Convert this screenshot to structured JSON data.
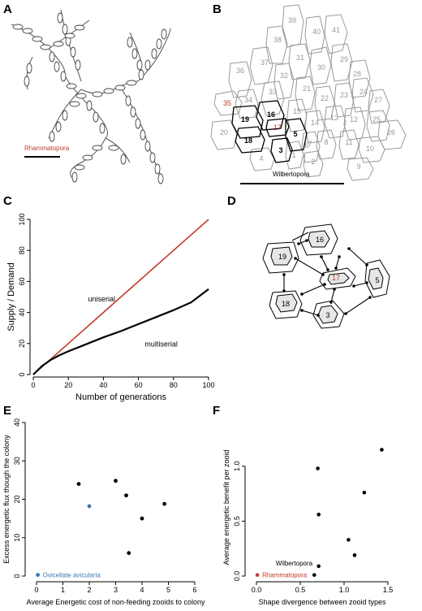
{
  "panels": {
    "A": {
      "label": "A",
      "taxon_label": "Rhammatopora",
      "taxon_color": "#c0392b"
    },
    "B": {
      "label": "B",
      "taxon_label": "Wilbertopora",
      "zooid_numbers_grey": [
        "39",
        "40",
        "41",
        "38",
        "31",
        "30",
        "29",
        "28",
        "37",
        "32",
        "21",
        "36",
        "22",
        "23",
        "24",
        "27",
        "33",
        "34",
        "15",
        "14",
        "13",
        "12",
        "25",
        "20",
        "8",
        "7",
        "11",
        "26",
        "4",
        "1",
        "6",
        "2",
        "10",
        "9"
      ],
      "zooid_numbers_black": [
        "16",
        "19",
        "5",
        "18",
        "3"
      ],
      "zooid_numbers_red": [
        "35",
        "17"
      ]
    },
    "C": {
      "label": "C"
    },
    "D": {
      "label": "D",
      "zooids": [
        "16",
        "19",
        "17",
        "5",
        "18",
        "3"
      ]
    },
    "E": {
      "label": "E"
    },
    "F": {
      "label": "F"
    }
  },
  "chart_data": [
    {
      "panel": "C",
      "type": "line",
      "xlabel": "Number of generations",
      "ylabel": "Supply / Demand",
      "xlim": [
        0,
        100
      ],
      "ylim": [
        0,
        100
      ],
      "xticks": [
        "0",
        "20",
        "40",
        "60",
        "80",
        "100"
      ],
      "yticks": [
        "0",
        "20",
        "40",
        "60",
        "80",
        "100"
      ],
      "series": [
        {
          "name": "uniserial",
          "color": "#c0392b",
          "x": [
            0,
            20,
            40,
            60,
            80,
            100
          ],
          "y": [
            0,
            20,
            40,
            60,
            80,
            100
          ]
        },
        {
          "name": "multiserial",
          "color": "#000000",
          "x": [
            0,
            5,
            10,
            15,
            20,
            30,
            40,
            50,
            60,
            70,
            80,
            90,
            100
          ],
          "y": [
            0,
            5.5,
            9.5,
            12.5,
            15,
            19.5,
            24,
            28,
            32.5,
            37,
            41.5,
            46.5,
            55
          ]
        }
      ]
    },
    {
      "panel": "E",
      "type": "scatter",
      "xlabel": "Average Energetic cost of non-feeding zooids to colony",
      "ylabel": "Excess energetic flux though the colony",
      "xlim": [
        0,
        6
      ],
      "ylim": [
        0,
        40
      ],
      "xticks": [
        "0",
        "1",
        "2",
        "3",
        "4",
        "5",
        "6"
      ],
      "yticks": [
        "0",
        "10",
        "20",
        "30",
        "40"
      ],
      "points": [
        {
          "x": 1.6,
          "y": 24.0,
          "color": "#000000"
        },
        {
          "x": 2.0,
          "y": 18.2,
          "color": "#3a78b5"
        },
        {
          "x": 3.0,
          "y": 24.8,
          "color": "#000000"
        },
        {
          "x": 3.4,
          "y": 21.0,
          "color": "#000000"
        },
        {
          "x": 4.0,
          "y": 15.0,
          "color": "#000000"
        },
        {
          "x": 3.5,
          "y": 6.0,
          "color": "#000000"
        },
        {
          "x": 4.85,
          "y": 18.8,
          "color": "#000000"
        },
        {
          "x": 0.05,
          "y": 0.3,
          "color": "#3a78b5"
        }
      ],
      "annotations": [
        {
          "text": "Ovicellate avicularia",
          "color": "#3a78b5"
        }
      ]
    },
    {
      "panel": "F",
      "type": "scatter",
      "xlabel": "Shape divergence between zooid types",
      "ylabel": "Average energetic benefit per zooid",
      "xlim": [
        0,
        1.5
      ],
      "ylim": [
        0,
        1.25
      ],
      "xticks": [
        "0.0",
        "0.5",
        "1.0",
        "1.5"
      ],
      "yticks": [
        "0.0",
        "0.5",
        "1.0"
      ],
      "points": [
        {
          "x": 0.7,
          "y": 0.98,
          "color": "#000000"
        },
        {
          "x": 0.71,
          "y": 0.56,
          "color": "#000000"
        },
        {
          "x": 1.43,
          "y": 1.15,
          "color": "#000000"
        },
        {
          "x": 1.23,
          "y": 0.76,
          "color": "#000000"
        },
        {
          "x": 1.05,
          "y": 0.33,
          "color": "#000000"
        },
        {
          "x": 1.12,
          "y": 0.19,
          "color": "#000000"
        },
        {
          "x": 0.71,
          "y": 0.09,
          "color": "#000000"
        },
        {
          "x": 0.66,
          "y": 0.01,
          "color": "#000000"
        },
        {
          "x": 0.01,
          "y": 0.01,
          "color": "#c0392b"
        }
      ],
      "annotations": [
        {
          "text": "Wilbertopora",
          "color": "#000000"
        },
        {
          "text": "Rhammatopora",
          "color": "#c0392b"
        }
      ]
    }
  ]
}
